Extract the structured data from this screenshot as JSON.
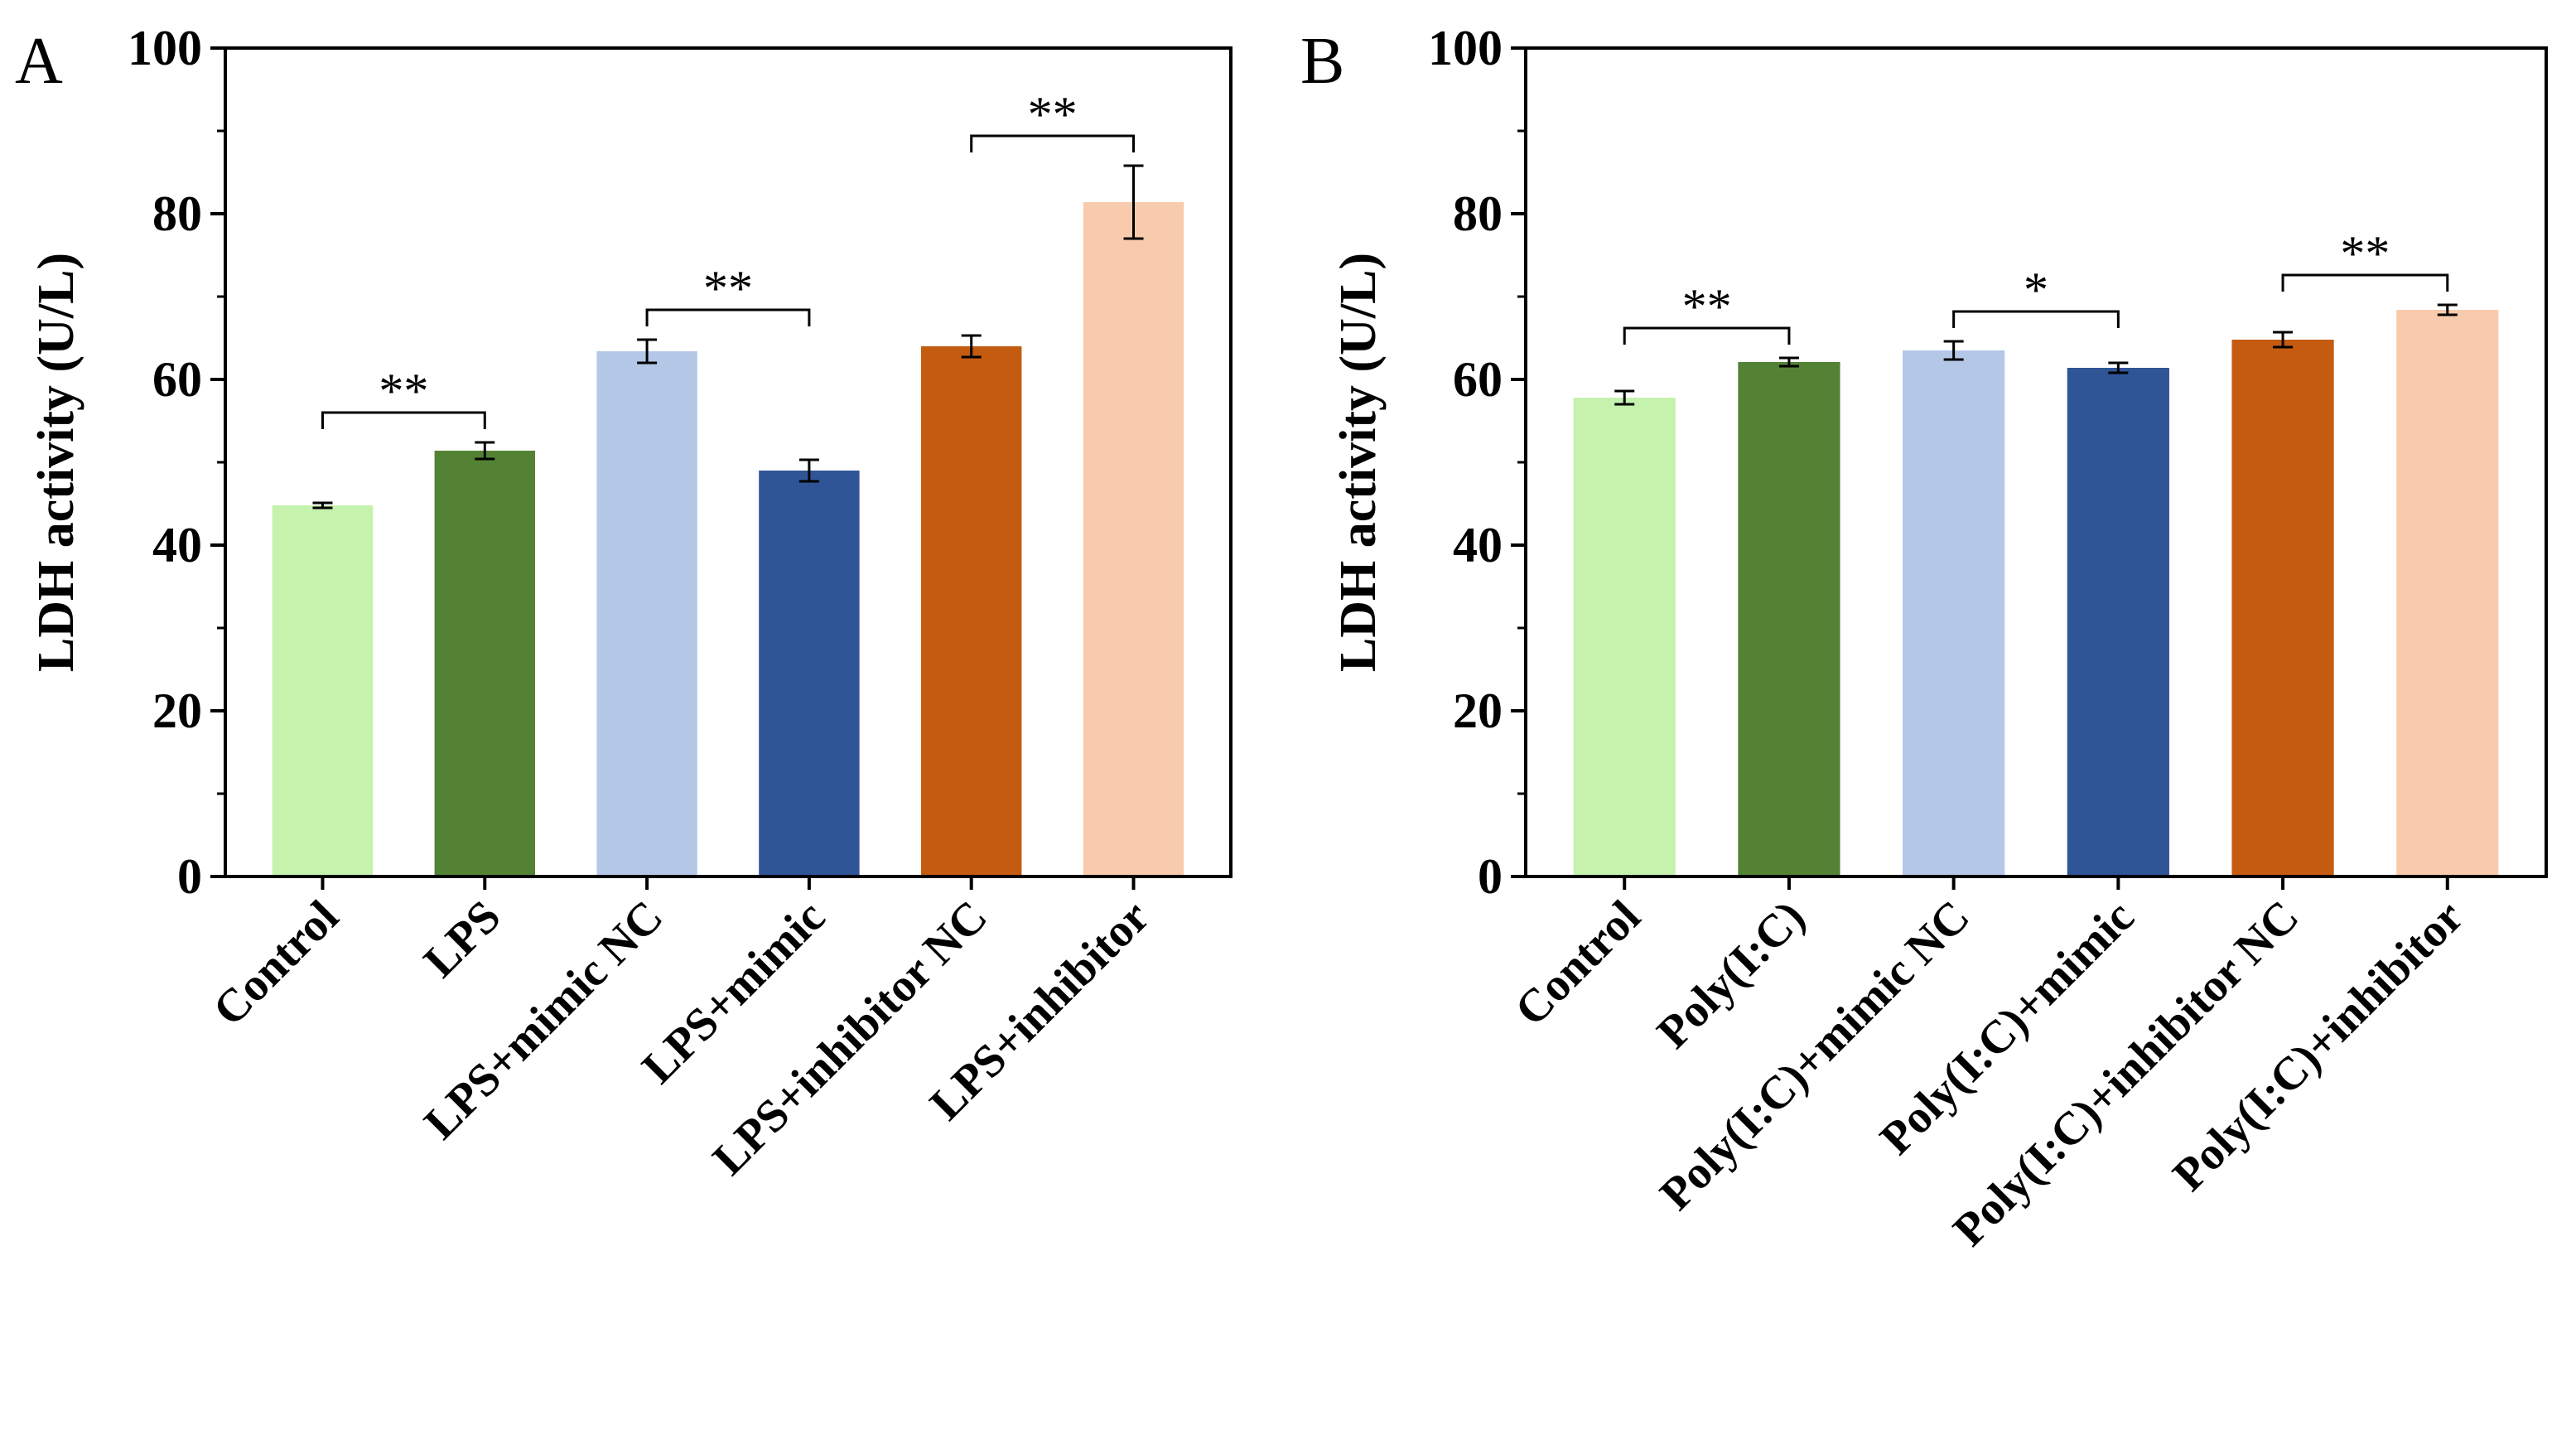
{
  "chart_data": [
    {
      "type": "bar",
      "panel": "A",
      "ylabel": "LDH activity (U/L)",
      "ylim": [
        0,
        100
      ],
      "yticks": [
        0,
        20,
        40,
        60,
        80,
        100
      ],
      "yticks_text": [
        "0",
        "20",
        "40",
        "60",
        "80",
        "100"
      ],
      "categories": [
        "Control",
        "LPS",
        "LPS+mimic NC",
        "LPS+mimic",
        "LPS+inhibitor NC",
        "LPS+inhibitor"
      ],
      "values": [
        44.8,
        51.4,
        63.4,
        49.0,
        64.0,
        81.4
      ],
      "errors": [
        0.3,
        1.0,
        1.4,
        1.3,
        1.3,
        4.4
      ],
      "colors": [
        "#c5f2ad",
        "#548235",
        "#b4c7e7",
        "#2f5597",
        "#c55a11",
        "#f8cbad"
      ],
      "significance": [
        {
          "from": 0,
          "to": 1,
          "label": "**"
        },
        {
          "from": 2,
          "to": 3,
          "label": "**"
        },
        {
          "from": 4,
          "to": 5,
          "label": "**"
        }
      ]
    },
    {
      "type": "bar",
      "panel": "B",
      "ylabel": "LDH activity (U/L)",
      "ylim": [
        0,
        100
      ],
      "yticks": [
        0,
        20,
        40,
        60,
        80,
        100
      ],
      "yticks_text": [
        "0",
        "20",
        "40",
        "60",
        "80",
        "100"
      ],
      "categories": [
        "Control",
        "Poly(I:C)",
        "Poly(I:C)+mimic NC",
        "Poly(I:C)+mimic",
        "Poly(I:C)+inhibitor NC",
        "Poly(I:C)+inhibitor"
      ],
      "values": [
        57.8,
        62.1,
        63.5,
        61.4,
        64.8,
        68.4
      ],
      "errors": [
        0.8,
        0.5,
        1.1,
        0.6,
        0.9,
        0.6
      ],
      "colors": [
        "#c5f2ad",
        "#548235",
        "#b4c7e7",
        "#2f5597",
        "#c55a11",
        "#f8cbad"
      ],
      "significance": [
        {
          "from": 0,
          "to": 1,
          "label": "**"
        },
        {
          "from": 2,
          "to": 3,
          "label": "*"
        },
        {
          "from": 4,
          "to": 5,
          "label": "**"
        }
      ]
    }
  ]
}
